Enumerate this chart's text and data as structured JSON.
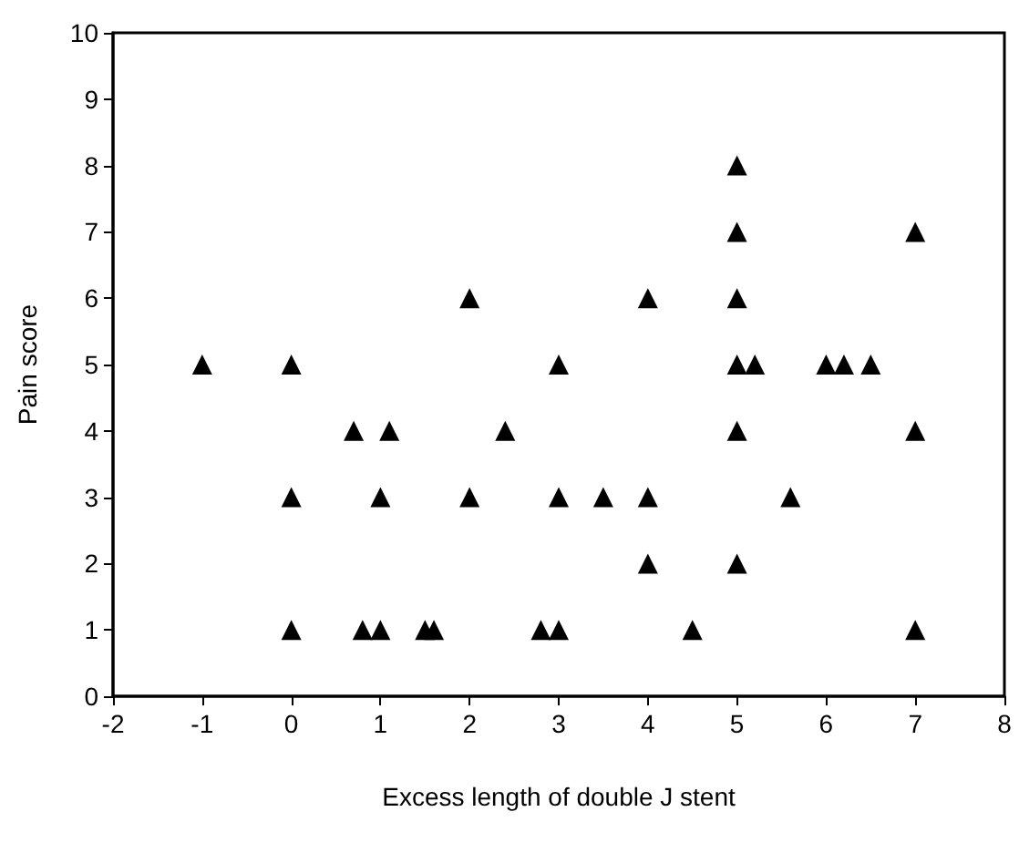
{
  "chart_data": {
    "type": "scatter",
    "xlabel": "Excess length of double J stent",
    "ylabel": "Pain score",
    "x": [
      -1,
      0,
      0,
      0,
      0.7,
      0.8,
      1,
      1,
      1.1,
      1.5,
      1.6,
      2,
      2,
      2.4,
      2.8,
      3,
      3,
      3,
      3.5,
      4,
      4,
      4,
      4.5,
      5,
      5,
      5,
      5,
      5,
      5,
      5.2,
      5.6,
      6,
      6.2,
      6.5,
      7,
      7,
      7
    ],
    "values": [
      5,
      5,
      3,
      1,
      4,
      1,
      1,
      3,
      4,
      1,
      1,
      6,
      3,
      4,
      1,
      1,
      5,
      3,
      3,
      6,
      3,
      2,
      1,
      8,
      7,
      6,
      5,
      4,
      2,
      5,
      3,
      5,
      5,
      5,
      7,
      4,
      1
    ],
    "color": "#000000",
    "marker": "triangle",
    "xlim": [
      -2,
      8
    ],
    "xticks": [
      -2,
      -1,
      0,
      1,
      2,
      3,
      4,
      5,
      6,
      7,
      8
    ],
    "ylim": [
      0,
      10
    ],
    "yticks": [
      0,
      1,
      2,
      3,
      4,
      5,
      6,
      7,
      8,
      9,
      10
    ]
  }
}
